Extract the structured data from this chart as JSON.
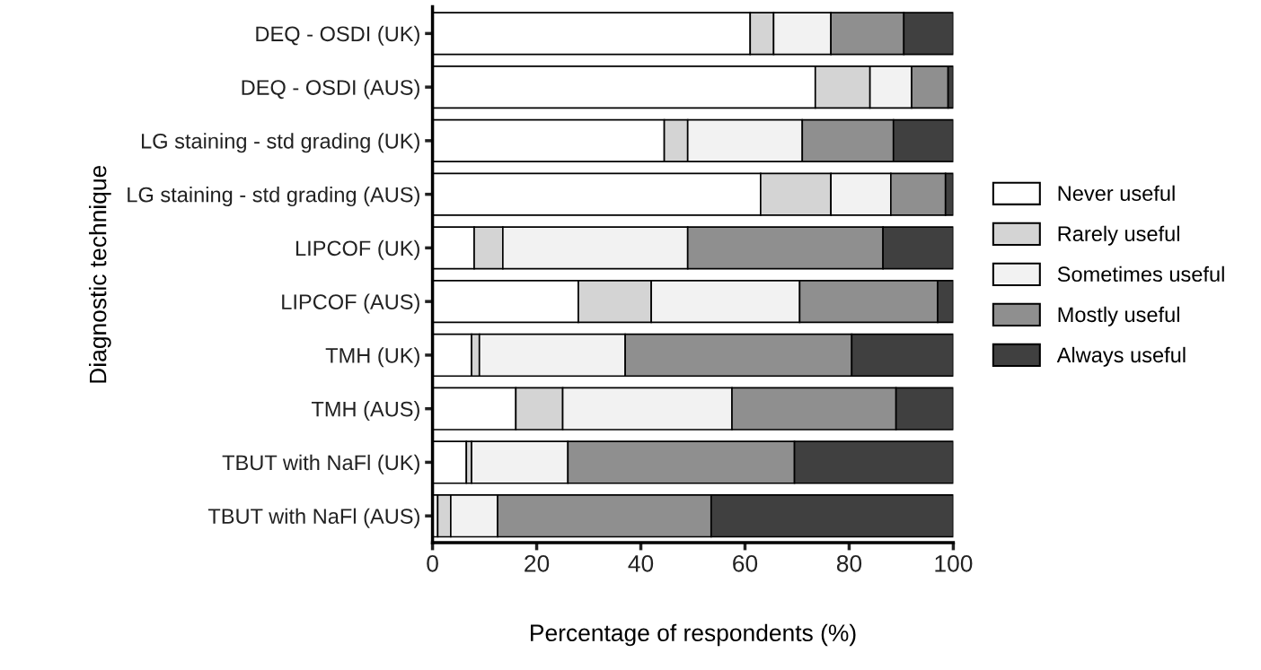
{
  "chart_data": {
    "type": "bar",
    "orientation": "horizontal",
    "stacked": true,
    "xlabel": "Percentage of respondents (%)",
    "ylabel": "Diagnostic technique",
    "categories": [
      "DEQ - OSDI (UK)",
      "DEQ - OSDI (AUS)",
      "LG staining - std grading (UK)",
      "LG staining - std grading (AUS)",
      "LIPCOF (UK)",
      "LIPCOF (AUS)",
      "TMH (UK)",
      "TMH (AUS)",
      "TBUT with NaFl (UK)",
      "TBUT with NaFl (AUS)"
    ],
    "series": [
      {
        "name": "Never useful",
        "color": "#ffffff",
        "values": [
          61,
          73.5,
          44.5,
          63,
          8,
          28,
          7.5,
          16,
          6.5,
          1
        ]
      },
      {
        "name": "Rarely useful",
        "color": "#d4d4d4",
        "values": [
          4.5,
          10.5,
          4.5,
          13.5,
          5.5,
          14,
          1.5,
          9,
          1,
          2.5
        ]
      },
      {
        "name": "Sometimes useful",
        "color": "#f2f2f2",
        "values": [
          11,
          8,
          22,
          11.5,
          35.5,
          28.5,
          28,
          32.5,
          18.5,
          9
        ]
      },
      {
        "name": "Mostly useful",
        "color": "#8f8f8f",
        "values": [
          14,
          7,
          17.5,
          10.5,
          37.5,
          26.5,
          43.5,
          31.5,
          43.5,
          41
        ]
      },
      {
        "name": "Always useful",
        "color": "#404040",
        "values": [
          9.5,
          1,
          11.5,
          1.5,
          13.5,
          3,
          19.5,
          11,
          30.5,
          46.5
        ]
      }
    ],
    "xlim": [
      0,
      100
    ],
    "xticks": [
      0,
      20,
      40,
      60,
      80,
      100
    ],
    "grid": false,
    "legend": "right"
  }
}
